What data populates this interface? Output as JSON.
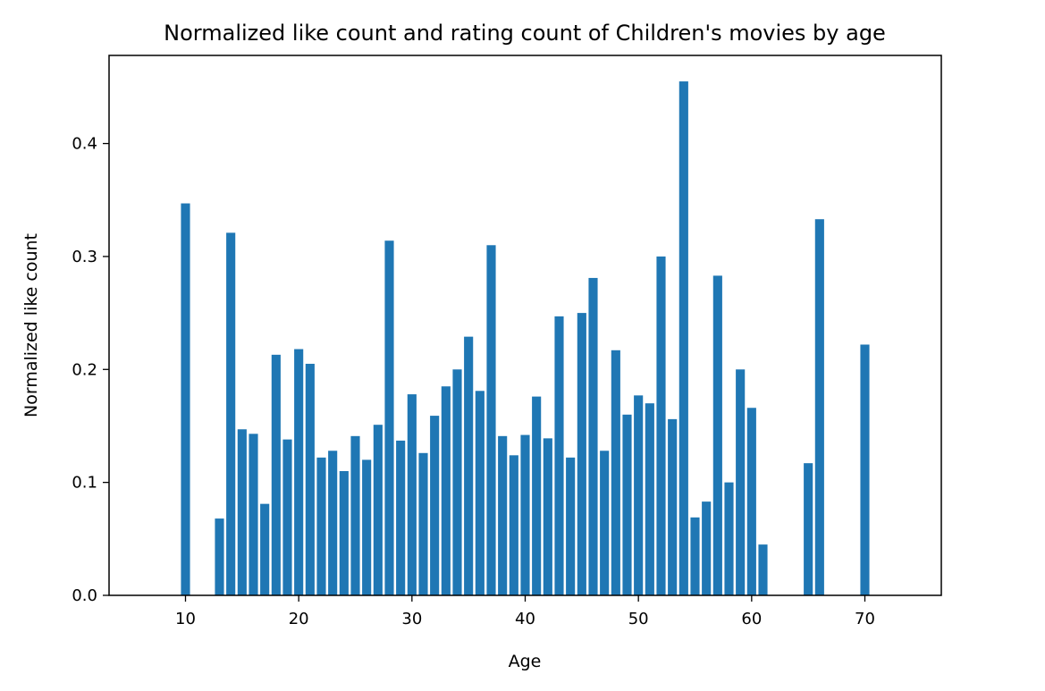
{
  "chart_data": {
    "type": "bar",
    "title": "Normalized like count and rating count of Children's movies by age",
    "xlabel": "Age",
    "ylabel": "Normalized like count",
    "xlim": [
      3.25,
      76.75
    ],
    "ylim": [
      0,
      0.478
    ],
    "xticks": [
      10,
      20,
      30,
      40,
      50,
      60,
      70
    ],
    "yticks": [
      0.0,
      0.1,
      0.2,
      0.3,
      0.4
    ],
    "ytick_labels": [
      "0.0",
      "0.1",
      "0.2",
      "0.3",
      "0.4"
    ],
    "grid": false,
    "color": "#1f77b4",
    "x": [
      10,
      13,
      14,
      15,
      16,
      17,
      18,
      19,
      20,
      21,
      22,
      23,
      24,
      25,
      26,
      27,
      28,
      29,
      30,
      31,
      32,
      33,
      34,
      35,
      36,
      37,
      38,
      39,
      40,
      41,
      42,
      43,
      44,
      45,
      46,
      47,
      48,
      49,
      50,
      51,
      52,
      53,
      54,
      55,
      56,
      57,
      58,
      59,
      60,
      61,
      65,
      66,
      70
    ],
    "values": [
      0.347,
      0.068,
      0.321,
      0.147,
      0.143,
      0.081,
      0.213,
      0.138,
      0.218,
      0.205,
      0.122,
      0.128,
      0.11,
      0.141,
      0.12,
      0.151,
      0.314,
      0.137,
      0.178,
      0.126,
      0.159,
      0.185,
      0.2,
      0.229,
      0.181,
      0.31,
      0.141,
      0.124,
      0.142,
      0.176,
      0.139,
      0.247,
      0.122,
      0.25,
      0.281,
      0.128,
      0.217,
      0.16,
      0.177,
      0.17,
      0.3,
      0.156,
      0.455,
      0.069,
      0.083,
      0.283,
      0.1,
      0.2,
      0.166,
      0.045,
      0.117,
      0.333,
      0.222
    ]
  }
}
